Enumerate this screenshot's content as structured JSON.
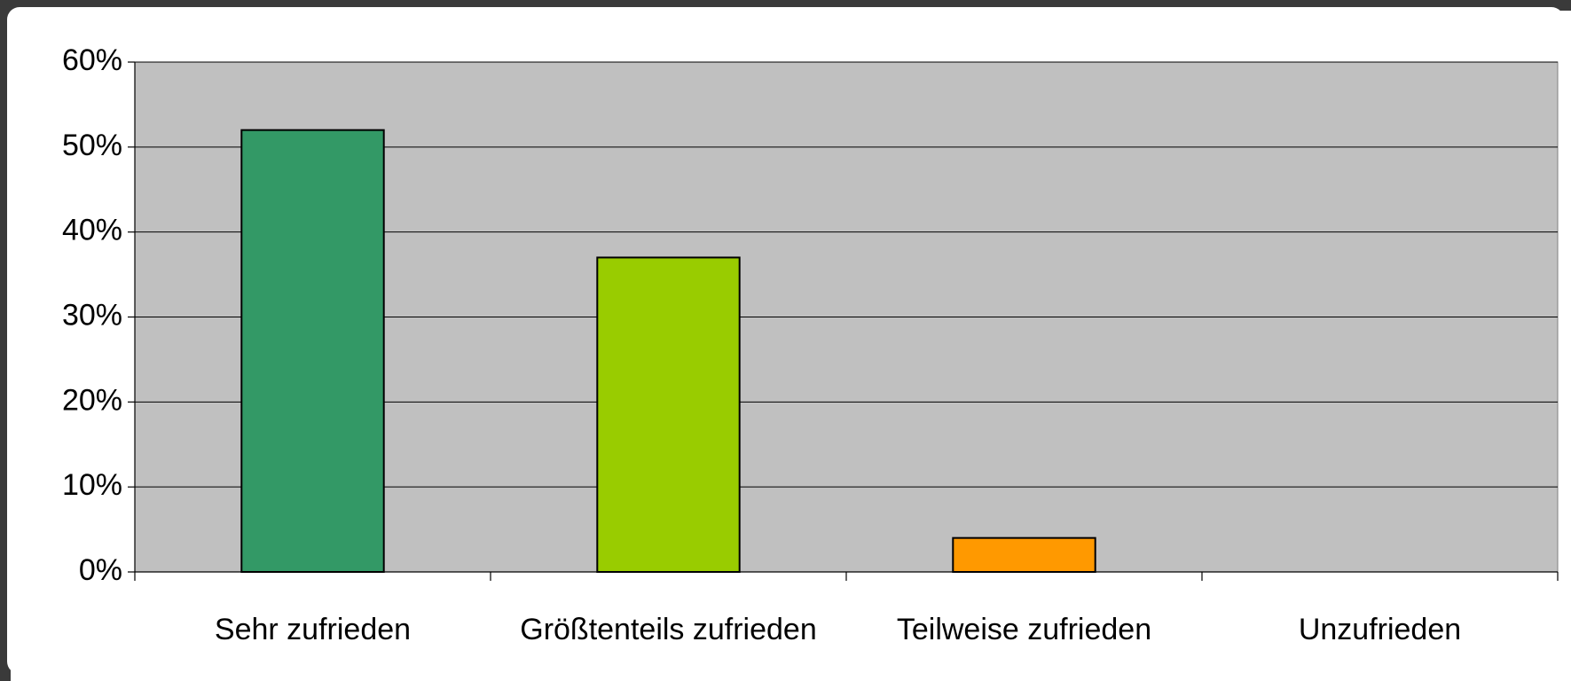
{
  "chart_data": {
    "type": "bar",
    "categories": [
      "Sehr zufrieden",
      "Größtenteils zufrieden",
      "Teilweise zufrieden",
      "Unzufrieden"
    ],
    "values": [
      52,
      37,
      4,
      0
    ],
    "colors": [
      "#339966",
      "#99cc00",
      "#ff9900",
      "#c0c0c0"
    ],
    "ylim": [
      0,
      60
    ],
    "yticks": [
      {
        "value": 0,
        "label": "0%"
      },
      {
        "value": 10,
        "label": "10%"
      },
      {
        "value": 20,
        "label": "20%"
      },
      {
        "value": 30,
        "label": "30%"
      },
      {
        "value": 40,
        "label": "40%"
      },
      {
        "value": 50,
        "label": "50%"
      },
      {
        "value": 60,
        "label": "60%"
      }
    ],
    "grid": true
  }
}
